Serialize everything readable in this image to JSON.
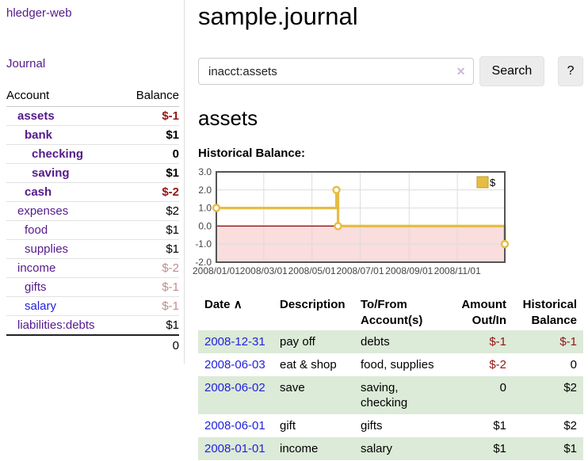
{
  "sidebar": {
    "app_title": "hledger-web",
    "journal_link": "Journal",
    "accounts_header": {
      "account": "Account",
      "balance": "Balance"
    },
    "accounts": [
      {
        "name": "assets",
        "indent": 1,
        "bold": true,
        "balance": "$-1",
        "balance_style": "neg"
      },
      {
        "name": "bank",
        "indent": 2,
        "bold": true,
        "balance": "$1",
        "balance_style": "plain"
      },
      {
        "name": "checking",
        "indent": 3,
        "bold": true,
        "balance": "0",
        "balance_style": "plain"
      },
      {
        "name": "saving",
        "indent": 3,
        "bold": true,
        "balance": "$1",
        "balance_style": "plain"
      },
      {
        "name": "cash",
        "indent": 2,
        "bold": true,
        "balance": "$-2",
        "balance_style": "neg"
      },
      {
        "name": "expenses",
        "indent": 1,
        "bold": false,
        "balance": "$2",
        "balance_style": "plain"
      },
      {
        "name": "food",
        "indent": 2,
        "bold": false,
        "balance": "$1",
        "balance_style": "plain"
      },
      {
        "name": "supplies",
        "indent": 2,
        "bold": false,
        "balance": "$1",
        "balance_style": "plain"
      },
      {
        "name": "income",
        "indent": 1,
        "bold": false,
        "balance": "$-2",
        "balance_style": "neg-soft"
      },
      {
        "name": "gifts",
        "indent": 2,
        "bold": false,
        "balance": "$-1",
        "balance_style": "neg-soft"
      },
      {
        "name": "salary",
        "indent": 2,
        "bold": false,
        "balance": "$-1",
        "balance_style": "neg-soft",
        "link_style": "unvisited"
      },
      {
        "name": "liabilities:debts",
        "indent": 1,
        "bold": false,
        "balance": "$1",
        "balance_style": "plain"
      }
    ],
    "total": "0"
  },
  "header": {
    "title": "sample.journal"
  },
  "search": {
    "query": "inacct:assets",
    "clear_icon": "✕",
    "button_label": "Search",
    "help_label": "?"
  },
  "account_page": {
    "title": "assets",
    "chart_label": "Historical Balance:"
  },
  "chart_data": {
    "type": "line",
    "title": "Historical Balance:",
    "step": true,
    "series": [
      {
        "name": "$",
        "color": "#e7bc42",
        "points": [
          [
            "2008-01-01",
            1
          ],
          [
            "2008-06-01",
            2
          ],
          [
            "2008-06-03",
            0
          ],
          [
            "2008-12-31",
            -1
          ]
        ]
      }
    ],
    "x_range": [
      "2008-01-01",
      "2008-12-31"
    ],
    "ylim": [
      -2,
      3
    ],
    "y_ticks": [
      3.0,
      2.0,
      1.0,
      0.0,
      -1.0,
      -2.0
    ],
    "x_ticks": [
      "2008/01/01",
      "2008/03/01",
      "2008/05/01",
      "2008/07/01",
      "2008/09/01",
      "2008/11/01"
    ],
    "legend": {
      "label": "$",
      "position": "top-right"
    },
    "grid": true,
    "colors": {
      "line": "#e7bc42",
      "marker_fill": "#ffffff",
      "legend_box_border": "#bf9b2f",
      "negative_region": "#fadddd",
      "zero_line": "#8b0000",
      "border": "#545454",
      "gridline": "#dcdcdc",
      "tick_text": "#444444"
    }
  },
  "register": {
    "columns": {
      "date": "Date",
      "description": "Description",
      "accounts": "To/From Account(s)",
      "amount": "Amount Out/In",
      "balance": "Historical Balance"
    },
    "sort_indicator": "∧",
    "rows": [
      {
        "date": "2008-12-31",
        "description": "pay off",
        "accounts": "debts",
        "amount": "$-1",
        "amount_neg": true,
        "balance": "$-1",
        "balance_neg": true,
        "shaded": true
      },
      {
        "date": "2008-06-03",
        "description": "eat & shop",
        "accounts": "food, supplies",
        "amount": "$-2",
        "amount_neg": true,
        "balance": "0",
        "balance_neg": false,
        "shaded": false
      },
      {
        "date": "2008-06-02",
        "description": "save",
        "accounts": "saving, checking",
        "amount": "0",
        "amount_neg": false,
        "balance": "$2",
        "balance_neg": false,
        "shaded": true
      },
      {
        "date": "2008-06-01",
        "description": "gift",
        "accounts": "gifts",
        "amount": "$1",
        "amount_neg": false,
        "balance": "$2",
        "balance_neg": false,
        "shaded": false
      },
      {
        "date": "2008-01-01",
        "description": "income",
        "accounts": "salary",
        "amount": "$1",
        "amount_neg": false,
        "balance": "$1",
        "balance_neg": false,
        "shaded": true
      }
    ]
  }
}
